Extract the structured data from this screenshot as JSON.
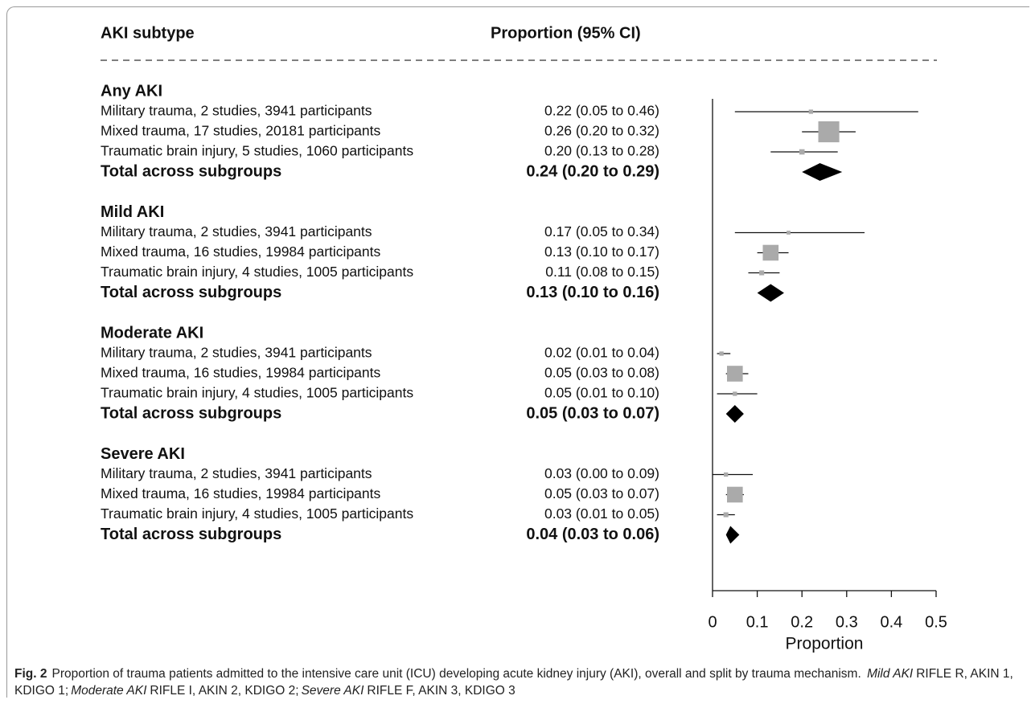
{
  "chart_data": {
    "type": "forest",
    "column_headers": [
      "AKI subtype",
      "Proportion (95% CI)"
    ],
    "xlabel": "Proportion",
    "xlim": [
      0,
      0.5
    ],
    "xticks": [
      0,
      0.1,
      0.2,
      0.3,
      0.4,
      0.5
    ],
    "marker_color": "#aaaaaa",
    "total_color": "#000000",
    "groups": [
      {
        "title": "Any AKI",
        "rows": [
          {
            "label": "Military trauma, 2 studies, 3941 participants",
            "value_label": "0.22 (0.05 to 0.46)",
            "value": 0.22,
            "lower": 0.05,
            "upper": 0.46,
            "weight": 5
          },
          {
            "label": "Mixed trauma, 17 studies, 20181 participants",
            "value_label": "0.26 (0.20 to 0.32)",
            "value": 0.26,
            "lower": 0.2,
            "upper": 0.32,
            "weight": 85
          },
          {
            "label": "Traumatic brain injury, 5 studies, 1060 participants",
            "value_label": "0.20 (0.13 to 0.28)",
            "value": 0.2,
            "lower": 0.13,
            "upper": 0.28,
            "weight": 10
          }
        ],
        "total": {
          "label": "Total across subgroups",
          "value_label": "0.24 (0.20 to 0.29)",
          "value": 0.24,
          "lower": 0.2,
          "upper": 0.29
        }
      },
      {
        "title": "Mild AKI",
        "rows": [
          {
            "label": "Military trauma, 2 studies, 3941 participants",
            "value_label": "0.17 (0.05 to 0.34)",
            "value": 0.17,
            "lower": 0.05,
            "upper": 0.34,
            "weight": 3
          },
          {
            "label": "Mixed trauma, 16 studies, 19984 participants",
            "value_label": "0.13 (0.10 to 0.17)",
            "value": 0.13,
            "lower": 0.1,
            "upper": 0.17,
            "weight": 60
          },
          {
            "label": "Traumatic brain injury, 4 studies, 1005 participants",
            "value_label": "0.11 (0.08 to 0.15)",
            "value": 0.11,
            "lower": 0.08,
            "upper": 0.15,
            "weight": 8
          }
        ],
        "total": {
          "label": "Total across subgroups",
          "value_label": "0.13 (0.10 to 0.16)",
          "value": 0.13,
          "lower": 0.1,
          "upper": 0.16
        }
      },
      {
        "title": "Moderate AKI",
        "rows": [
          {
            "label": "Military trauma, 2 studies, 3941 participants",
            "value_label": "0.02 (0.01 to 0.04)",
            "value": 0.02,
            "lower": 0.01,
            "upper": 0.04,
            "weight": 5
          },
          {
            "label": "Mixed trauma, 16 studies, 19984 participants",
            "value_label": "0.05 (0.03 to 0.08)",
            "value": 0.05,
            "lower": 0.03,
            "upper": 0.08,
            "weight": 60
          },
          {
            "label": "Traumatic brain injury, 4 studies, 1005 participants",
            "value_label": "0.05 (0.01 to 0.10)",
            "value": 0.05,
            "lower": 0.01,
            "upper": 0.1,
            "weight": 5
          }
        ],
        "total": {
          "label": "Total across subgroups",
          "value_label": "0.05 (0.03 to 0.07)",
          "value": 0.05,
          "lower": 0.03,
          "upper": 0.07
        }
      },
      {
        "title": "Severe AKI",
        "rows": [
          {
            "label": "Military trauma, 2 studies, 3941 participants",
            "value_label": "0.03 (0.00 to 0.09)",
            "value": 0.03,
            "lower": 0.0,
            "upper": 0.09,
            "weight": 5
          },
          {
            "label": "Mixed trauma, 16 studies, 19984 participants",
            "value_label": "0.05 (0.03 to 0.07)",
            "value": 0.05,
            "lower": 0.03,
            "upper": 0.07,
            "weight": 60
          },
          {
            "label": "Traumatic brain injury, 4 studies, 1005 participants",
            "value_label": "0.03 (0.01 to 0.05)",
            "value": 0.03,
            "lower": 0.01,
            "upper": 0.05,
            "weight": 8
          }
        ],
        "total": {
          "label": "Total across subgroups",
          "value_label": "0.04 (0.03 to 0.06)",
          "value": 0.04,
          "lower": 0.03,
          "upper": 0.06
        }
      }
    ]
  },
  "caption": {
    "label": "Fig. 2",
    "text": "Proportion of trauma patients admitted to the intensive care unit (ICU) developing acute kidney injury (AKI), overall and split by trauma mechanism.",
    "definitions": [
      {
        "term": "Mild AKI",
        "definition": "RIFLE R, AKIN 1, KDIGO 1;"
      },
      {
        "term": "Moderate AKI",
        "definition": "RIFLE I, AKIN 2, KDIGO 2;"
      },
      {
        "term": "Severe AKI",
        "definition": "RIFLE F, AKIN 3, KDIGO 3"
      }
    ]
  }
}
